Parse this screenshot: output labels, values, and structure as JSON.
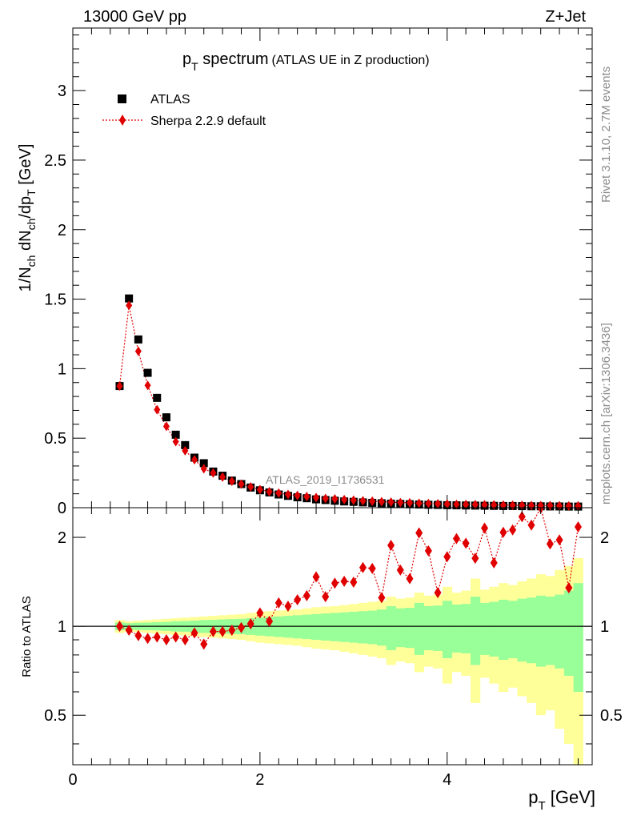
{
  "header": {
    "energy": "13000 GeV pp",
    "process": "Z+Jet"
  },
  "side": {
    "rivet": "Rivet 3.1.10,  2.7M events",
    "mcplots": "mcplots.cern.ch [arXiv:1306.3436]"
  },
  "analysis_label": "ATLAS_2019_I1736531",
  "colors": {
    "data": "#000000",
    "mc": "#e00000",
    "band_outer": "#ffff99",
    "band_inner": "#99ff99"
  },
  "chart_data": [
    {
      "type": "scatter",
      "title": {
        "p": "p",
        "sub": "T",
        "word": " spectrum",
        "extra": "(ATLAS UE in Z production)"
      },
      "ylabel": "1/N_ch dN_ch/dp_T [GeV]",
      "xlim": [
        0,
        5.55
      ],
      "ylim": [
        0,
        3.45
      ],
      "yticks": [
        {
          "v": 0,
          "t": "0"
        },
        {
          "v": 0.5,
          "t": "0.5"
        },
        {
          "v": 1,
          "t": "1"
        },
        {
          "v": 1.5,
          "t": "1.5"
        },
        {
          "v": 2,
          "t": "2"
        },
        {
          "v": 2.5,
          "t": "2.5"
        },
        {
          "v": 3,
          "t": "3"
        }
      ],
      "legend": {
        "position": "top-left",
        "data": "ATLAS",
        "mc": "Sherpa 2.2.9 default"
      },
      "x": [
        0.5,
        0.6,
        0.7,
        0.8,
        0.9,
        1.0,
        1.1,
        1.2,
        1.3,
        1.4,
        1.5,
        1.6,
        1.7,
        1.8,
        1.9,
        2.0,
        2.1,
        2.2,
        2.3,
        2.4,
        2.5,
        2.6,
        2.7,
        2.8,
        2.9,
        3.0,
        3.1,
        3.2,
        3.3,
        3.4,
        3.5,
        3.6,
        3.7,
        3.8,
        3.9,
        4.0,
        4.1,
        4.2,
        4.3,
        4.4,
        4.5,
        4.6,
        4.7,
        4.8,
        4.9,
        5.0,
        5.1,
        5.2,
        5.3,
        5.4
      ],
      "series": [
        {
          "name": "ATLAS",
          "values": [
            0.875,
            1.505,
            1.21,
            0.97,
            0.79,
            0.65,
            0.525,
            0.45,
            0.36,
            0.32,
            0.26,
            0.23,
            0.195,
            0.17,
            0.145,
            0.125,
            0.11,
            0.095,
            0.085,
            0.075,
            0.068,
            0.06,
            0.055,
            0.05,
            0.045,
            0.042,
            0.038,
            0.035,
            0.032,
            0.029,
            0.027,
            0.025,
            0.023,
            0.021,
            0.02,
            0.018,
            0.017,
            0.016,
            0.015,
            0.014,
            0.013,
            0.012,
            0.012,
            0.011,
            0.01,
            0.01,
            0.009,
            0.009,
            0.008,
            0.008
          ]
        },
        {
          "name": "Sherpa 2.2.9 default",
          "values": [
            0.875,
            1.455,
            1.125,
            0.88,
            0.705,
            0.585,
            0.475,
            0.41,
            0.345,
            0.28,
            0.25,
            0.22,
            0.19,
            0.17,
            0.15,
            0.13,
            0.115,
            0.105,
            0.095,
            0.088,
            0.08,
            0.073,
            0.066,
            0.063,
            0.058,
            0.054,
            0.05,
            0.047,
            0.043,
            0.04,
            0.037,
            0.035,
            0.032,
            0.03,
            0.028,
            0.026,
            0.024,
            0.023,
            0.022,
            0.021,
            0.02,
            0.019,
            0.018,
            0.017,
            0.016,
            0.015,
            0.015,
            0.014,
            0.013,
            0.013
          ]
        }
      ]
    },
    {
      "type": "line",
      "ylabel": "Ratio to ATLAS",
      "xlabel": {
        "p": "p",
        "sub": "T",
        "unit": " [GeV]"
      },
      "xlim": [
        0,
        5.55
      ],
      "ylim": [
        0.34,
        2.52
      ],
      "yscale": "log",
      "reference": 1,
      "xticks": [
        {
          "v": 0,
          "t": "0"
        },
        {
          "v": 2,
          "t": "2"
        },
        {
          "v": 4,
          "t": "4"
        }
      ],
      "yticks": [
        {
          "v": 0.5,
          "t": "0.5"
        },
        {
          "v": 1,
          "t": "1"
        },
        {
          "v": 2,
          "t": "2"
        }
      ],
      "x": [
        0.5,
        0.6,
        0.7,
        0.8,
        0.9,
        1.0,
        1.1,
        1.2,
        1.3,
        1.4,
        1.5,
        1.6,
        1.7,
        1.8,
        1.9,
        2.0,
        2.1,
        2.2,
        2.3,
        2.4,
        2.5,
        2.6,
        2.7,
        2.8,
        2.9,
        3.0,
        3.1,
        3.2,
        3.3,
        3.4,
        3.5,
        3.6,
        3.7,
        3.8,
        3.9,
        4.0,
        4.1,
        4.2,
        4.3,
        4.4,
        4.5,
        4.6,
        4.7,
        4.8,
        4.9,
        5.0,
        5.1,
        5.2,
        5.3,
        5.4
      ],
      "series": [
        {
          "name": "Sherpa 2.2.9 default / ATLAS",
          "values": [
            1.0,
            0.97,
            0.93,
            0.91,
            0.92,
            0.9,
            0.92,
            0.9,
            0.95,
            0.87,
            0.96,
            0.96,
            0.97,
            0.99,
            1.02,
            1.11,
            1.04,
            1.2,
            1.17,
            1.23,
            1.27,
            1.47,
            1.26,
            1.4,
            1.42,
            1.41,
            1.58,
            1.57,
            1.25,
            1.88,
            1.55,
            1.45,
            2.07,
            1.8,
            1.3,
            1.72,
            1.98,
            1.91,
            1.7,
            2.15,
            1.64,
            2.08,
            2.12,
            2.35,
            2.2,
            2.62,
            1.9,
            1.96,
            1.35,
            2.17
          ]
        }
      ],
      "bands": {
        "outer_half_width": [
          0.05,
          0.04,
          0.045,
          0.05,
          0.055,
          0.06,
          0.065,
          0.07,
          0.075,
          0.08,
          0.085,
          0.09,
          0.095,
          0.1,
          0.11,
          0.12,
          0.125,
          0.13,
          0.135,
          0.14,
          0.15,
          0.16,
          0.165,
          0.17,
          0.18,
          0.19,
          0.2,
          0.21,
          0.22,
          0.26,
          0.24,
          0.25,
          0.3,
          0.27,
          0.28,
          0.36,
          0.3,
          0.32,
          0.45,
          0.33,
          0.36,
          0.4,
          0.38,
          0.42,
          0.45,
          0.5,
          0.48,
          0.55,
          0.6,
          0.7
        ],
        "inner_half_width": [
          0.03,
          0.025,
          0.028,
          0.03,
          0.032,
          0.035,
          0.04,
          0.042,
          0.045,
          0.05,
          0.052,
          0.055,
          0.058,
          0.06,
          0.065,
          0.07,
          0.075,
          0.08,
          0.085,
          0.09,
          0.095,
          0.1,
          0.105,
          0.11,
          0.115,
          0.12,
          0.125,
          0.13,
          0.14,
          0.17,
          0.15,
          0.155,
          0.2,
          0.17,
          0.175,
          0.22,
          0.185,
          0.19,
          0.26,
          0.2,
          0.21,
          0.23,
          0.22,
          0.24,
          0.25,
          0.27,
          0.26,
          0.28,
          0.32,
          0.4
        ]
      }
    }
  ]
}
